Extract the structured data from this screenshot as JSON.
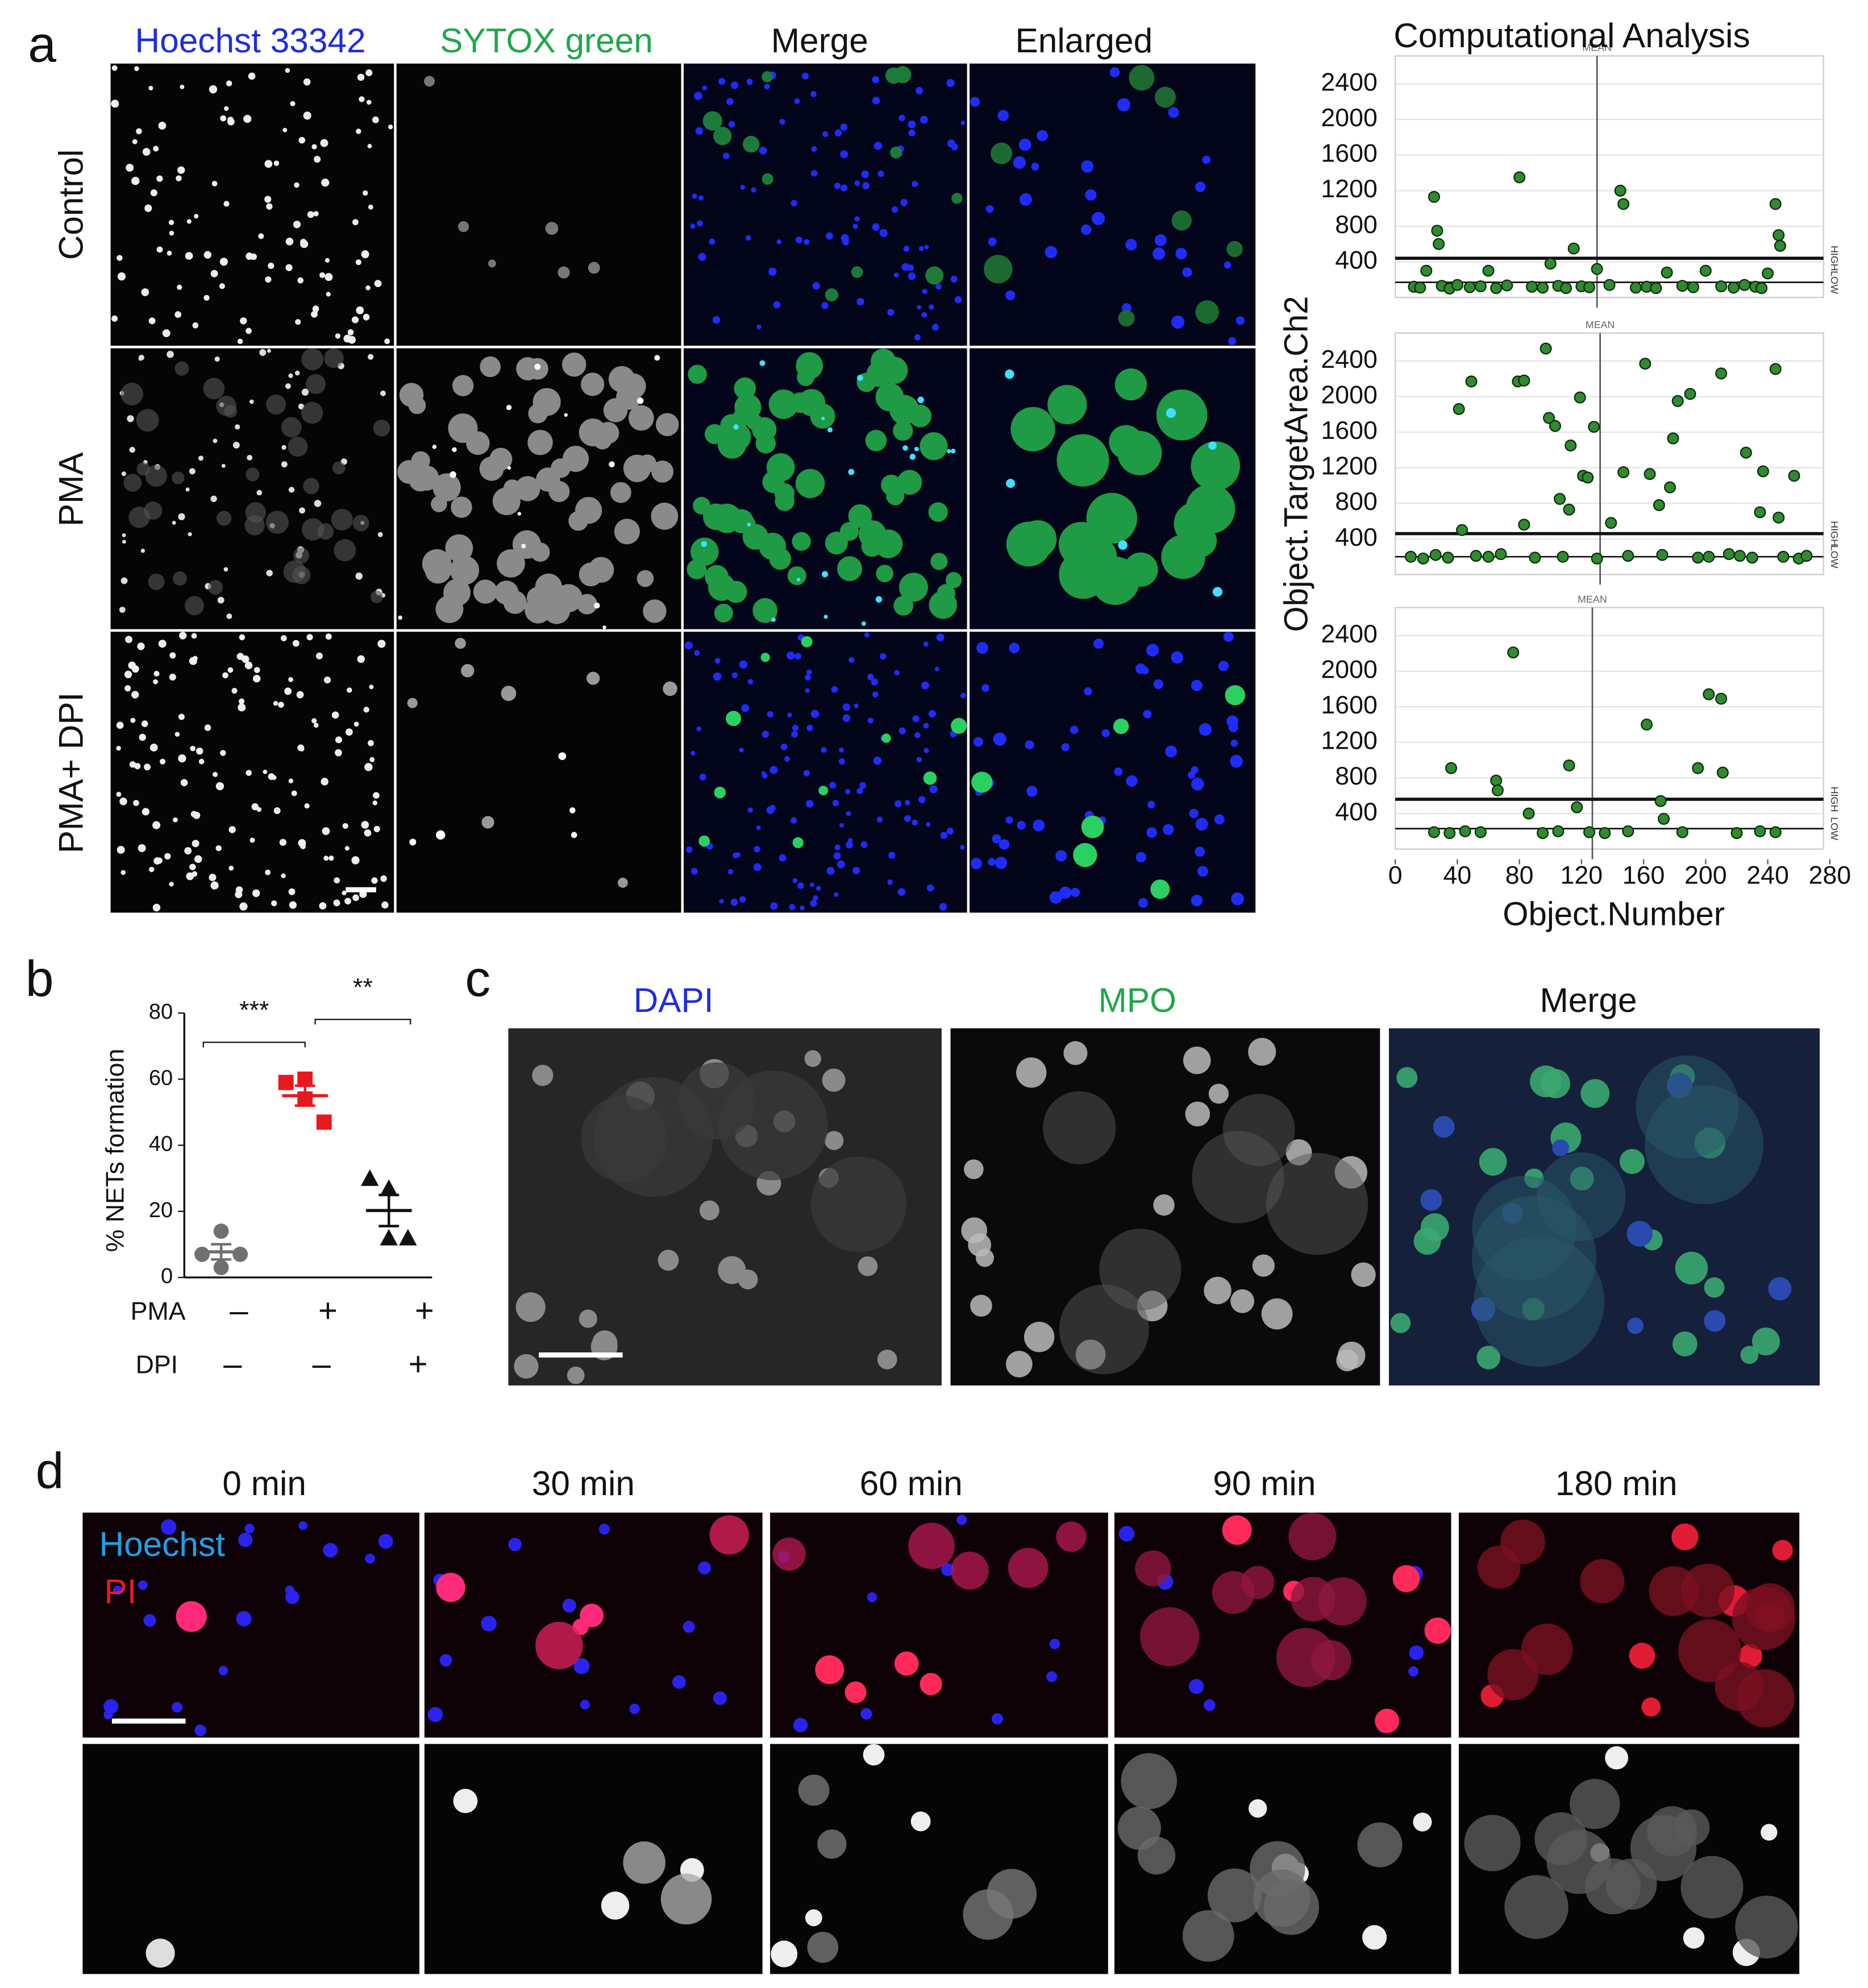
{
  "panel_a": {
    "label": "a",
    "columns": [
      "Hoechst 33342",
      "SYTOX green",
      "Merge",
      "Enlarged"
    ],
    "rows": [
      "Control",
      "PMA",
      "PMA+ DPI"
    ]
  },
  "panel_b": {
    "label": "b"
  },
  "panel_c": {
    "label": "c",
    "columns": [
      "DAPI",
      "MPO",
      "Merge"
    ]
  },
  "panel_d": {
    "label": "d",
    "columns": [
      "0 min",
      "30 min",
      "60 min",
      "90 min",
      "180 min"
    ],
    "legend": [
      "Hoechst",
      "PI"
    ]
  },
  "chart_data": [
    {
      "type": "scatter",
      "title": "Computational Analysis",
      "color": "#2e8b2e",
      "grid": true,
      "xlim": [
        0,
        280
      ],
      "ylim": [
        0,
        2600
      ],
      "yticks": [
        400,
        800,
        1200,
        1600,
        2000,
        2400
      ],
      "mean_x": 130,
      "mean_label": "MEAN",
      "high": 440,
      "low": 170,
      "high_label": "HIGH",
      "low_label": "LOW",
      "x": [
        25,
        27,
        28,
        80,
        115,
        145,
        147,
        245,
        247,
        248,
        20,
        60,
        100,
        130,
        175,
        200,
        240,
        12,
        16,
        30,
        35,
        40,
        48,
        55,
        65,
        72,
        88,
        95,
        105,
        110,
        120,
        125,
        138,
        155,
        162,
        168,
        185,
        192,
        210,
        218,
        225,
        232,
        236
      ],
      "values": [
        1130,
        750,
        600,
        1350,
        550,
        1200,
        1050,
        1050,
        700,
        580,
        300,
        300,
        380,
        320,
        280,
        300,
        270,
        120,
        110,
        130,
        100,
        140,
        115,
        125,
        105,
        135,
        120,
        110,
        130,
        105,
        125,
        115,
        140,
        110,
        120,
        105,
        130,
        115,
        125,
        110,
        140,
        120,
        105
      ]
    },
    {
      "type": "scatter",
      "ylabel": "Object.TargetArea.Ch2",
      "color": "#2e8b2e",
      "grid": true,
      "xlim": [
        0,
        280
      ],
      "ylim": [
        0,
        2600
      ],
      "yticks": [
        400,
        800,
        1200,
        1600,
        2000,
        2400
      ],
      "mean_x": 132,
      "mean_label": "MEAN",
      "high": 460,
      "low": 200,
      "high_label": "HIGH",
      "low_label": "LOW",
      "x": [
        41,
        49,
        79,
        83,
        97,
        99,
        103,
        113,
        119,
        128,
        121,
        124,
        147,
        161,
        164,
        182,
        190,
        179,
        226,
        237,
        257,
        245,
        210,
        106,
        112,
        177,
        170,
        139,
        83,
        43,
        247,
        235,
        10,
        18,
        26,
        34,
        52,
        60,
        68,
        90,
        108,
        130,
        150,
        172,
        195,
        202,
        215,
        222,
        230,
        250,
        260,
        265
      ],
      "values": [
        1860,
        2170,
        2170,
        2180,
        2540,
        1760,
        1670,
        1450,
        1990,
        1660,
        1110,
        1090,
        1150,
        2370,
        1130,
        1950,
        2030,
        1530,
        1370,
        1160,
        1110,
        2310,
        2260,
        850,
        730,
        980,
        780,
        580,
        560,
        500,
        640,
        700,
        200,
        180,
        220,
        190,
        210,
        200,
        230,
        190,
        200,
        180,
        210,
        220,
        190,
        200,
        230,
        210,
        190,
        200,
        180,
        210
      ]
    },
    {
      "type": "scatter",
      "xlabel": "Object.Number",
      "color": "#2e8b2e",
      "grid": true,
      "xlim": [
        0,
        280
      ],
      "xticks": [
        0,
        40,
        80,
        120,
        160,
        200,
        240,
        280
      ],
      "ylim": [
        0,
        2600
      ],
      "yticks": [
        400,
        800,
        1200,
        1600,
        2000,
        2400
      ],
      "mean_x": 127,
      "mean_label": "MEAN",
      "high": 560,
      "low": 230,
      "high_label": "HIGH",
      "low_label": "LOW",
      "x": [
        76,
        36,
        65,
        66,
        86,
        112,
        117,
        162,
        171,
        173,
        195,
        202,
        210,
        211,
        25,
        35,
        45,
        55,
        95,
        105,
        125,
        135,
        150,
        185,
        220,
        235,
        245
      ],
      "values": [
        2210,
        910,
        770,
        660,
        400,
        940,
        470,
        1400,
        540,
        340,
        910,
        1740,
        1690,
        860,
        190,
        180,
        200,
        190,
        180,
        200,
        190,
        180,
        200,
        190,
        180,
        200,
        190
      ]
    },
    {
      "type": "dot",
      "ylabel": "% NETs formation",
      "ylim": [
        0,
        80
      ],
      "yticks": [
        0,
        20,
        40,
        60,
        80
      ],
      "series": [
        {
          "color": "#707070",
          "marker": "circle",
          "values": [
            14,
            7,
            3,
            7
          ],
          "mean": 7.75,
          "sem": 2.3
        },
        {
          "color": "#e8191e",
          "marker": "square",
          "values": [
            60,
            59,
            54,
            47
          ],
          "mean": 55,
          "sem": 3
        },
        {
          "color": "#111111",
          "marker": "triangle",
          "values": [
            27,
            30,
            12,
            12
          ],
          "mean": 20.25,
          "sem": 4.7
        }
      ],
      "rows": [
        {
          "name": "PMA",
          "signs": [
            "–",
            "+",
            "+"
          ]
        },
        {
          "name": "DPI",
          "signs": [
            "–",
            "–",
            "+"
          ]
        }
      ],
      "significance": [
        "***",
        "**"
      ]
    }
  ]
}
